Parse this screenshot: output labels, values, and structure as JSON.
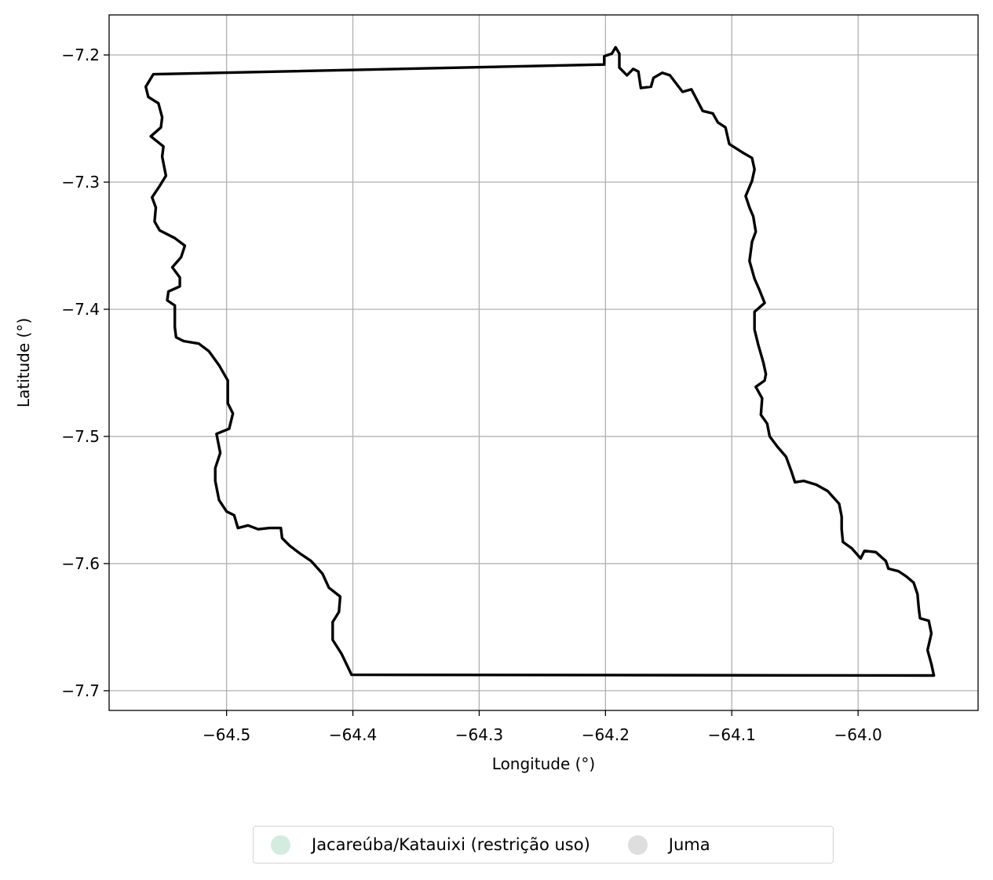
{
  "chart_data": {
    "type": "map",
    "title": "",
    "xlabel": "Longitude (°)",
    "ylabel": "Latitude (°)",
    "xlim": [
      -64.593,
      -63.905
    ],
    "ylim": [
      -7.7155,
      -7.1685
    ],
    "grid": true,
    "x_ticks": [
      {
        "value": -64.5,
        "label": "−64.5"
      },
      {
        "value": -64.4,
        "label": "−64.4"
      },
      {
        "value": -64.3,
        "label": "−64.3"
      },
      {
        "value": -64.2,
        "label": "−64.2"
      },
      {
        "value": -64.1,
        "label": "−64.1"
      },
      {
        "value": -64.0,
        "label": "−64.0"
      }
    ],
    "y_ticks": [
      {
        "value": -7.2,
        "label": "−7.2"
      },
      {
        "value": -7.3,
        "label": "−7.3"
      },
      {
        "value": -7.4,
        "label": "−7.4"
      },
      {
        "value": -7.5,
        "label": "−7.5"
      },
      {
        "value": -7.6,
        "label": "−7.6"
      },
      {
        "value": -7.7,
        "label": "−7.7"
      }
    ],
    "outline_color": "#000000",
    "boundary": [
      [
        -64.558,
        -7.2152
      ],
      [
        -64.201,
        -7.2075
      ],
      [
        -64.201,
        -7.201
      ],
      [
        -64.195,
        -7.199
      ],
      [
        -64.192,
        -7.194
      ],
      [
        -64.189,
        -7.199
      ],
      [
        -64.189,
        -7.21
      ],
      [
        -64.183,
        -7.216
      ],
      [
        -64.178,
        -7.211
      ],
      [
        -64.174,
        -7.213
      ],
      [
        -64.172,
        -7.226
      ],
      [
        -64.164,
        -7.225
      ],
      [
        -64.162,
        -7.218
      ],
      [
        -64.155,
        -7.214
      ],
      [
        -64.149,
        -7.216
      ],
      [
        -64.139,
        -7.229
      ],
      [
        -64.132,
        -7.227
      ],
      [
        -64.123,
        -7.244
      ],
      [
        -64.115,
        -7.246
      ],
      [
        -64.111,
        -7.253
      ],
      [
        -64.105,
        -7.257
      ],
      [
        -64.102,
        -7.27
      ],
      [
        -64.091,
        -7.277
      ],
      [
        -64.084,
        -7.281
      ],
      [
        -64.082,
        -7.29
      ],
      [
        -64.084,
        -7.299
      ],
      [
        -64.089,
        -7.311
      ],
      [
        -64.086,
        -7.32
      ],
      [
        -64.083,
        -7.327
      ],
      [
        -64.081,
        -7.339
      ],
      [
        -64.084,
        -7.347
      ],
      [
        -64.086,
        -7.362
      ],
      [
        -64.082,
        -7.376
      ],
      [
        -64.078,
        -7.385
      ],
      [
        -64.074,
        -7.395
      ],
      [
        -64.082,
        -7.402
      ],
      [
        -64.082,
        -7.416
      ],
      [
        -64.079,
        -7.428
      ],
      [
        -64.075,
        -7.442
      ],
      [
        -64.073,
        -7.451
      ],
      [
        -64.074,
        -7.456
      ],
      [
        -64.081,
        -7.461
      ],
      [
        -64.076,
        -7.47
      ],
      [
        -64.077,
        -7.483
      ],
      [
        -64.072,
        -7.49
      ],
      [
        -64.07,
        -7.5
      ],
      [
        -64.064,
        -7.508
      ],
      [
        -64.057,
        -7.516
      ],
      [
        -64.053,
        -7.527
      ],
      [
        -64.05,
        -7.536
      ],
      [
        -64.043,
        -7.535
      ],
      [
        -64.033,
        -7.538
      ],
      [
        -64.024,
        -7.543
      ],
      [
        -64.015,
        -7.553
      ],
      [
        -64.013,
        -7.563
      ],
      [
        -64.013,
        -7.573
      ],
      [
        -64.012,
        -7.583
      ],
      [
        -64.005,
        -7.588
      ],
      [
        -63.998,
        -7.596
      ],
      [
        -63.995,
        -7.59
      ],
      [
        -63.986,
        -7.591
      ],
      [
        -63.978,
        -7.598
      ],
      [
        -63.976,
        -7.604
      ],
      [
        -63.968,
        -7.606
      ],
      [
        -63.962,
        -7.61
      ],
      [
        -63.956,
        -7.615
      ],
      [
        -63.953,
        -7.624
      ],
      [
        -63.952,
        -7.635
      ],
      [
        -63.951,
        -7.643
      ],
      [
        -63.944,
        -7.645
      ],
      [
        -63.942,
        -7.655
      ],
      [
        -63.945,
        -7.668
      ],
      [
        -63.942,
        -7.679
      ],
      [
        -63.94,
        -7.688
      ],
      [
        -64.401,
        -7.6875
      ],
      [
        -64.409,
        -7.671
      ],
      [
        -64.416,
        -7.66
      ],
      [
        -64.416,
        -7.646
      ],
      [
        -64.411,
        -7.638
      ],
      [
        -64.41,
        -7.626
      ],
      [
        -64.419,
        -7.619
      ],
      [
        -64.424,
        -7.608
      ],
      [
        -64.433,
        -7.598
      ],
      [
        -64.442,
        -7.592
      ],
      [
        -64.45,
        -7.586
      ],
      [
        -64.456,
        -7.58
      ],
      [
        -64.457,
        -7.572
      ],
      [
        -64.466,
        -7.572
      ],
      [
        -64.475,
        -7.573
      ],
      [
        -64.483,
        -7.57
      ],
      [
        -64.491,
        -7.572
      ],
      [
        -64.494,
        -7.562
      ],
      [
        -64.5,
        -7.559
      ],
      [
        -64.506,
        -7.55
      ],
      [
        -64.509,
        -7.535
      ],
      [
        -64.509,
        -7.525
      ],
      [
        -64.505,
        -7.513
      ],
      [
        -64.508,
        -7.498
      ],
      [
        -64.498,
        -7.494
      ],
      [
        -64.495,
        -7.482
      ],
      [
        -64.499,
        -7.474
      ],
      [
        -64.499,
        -7.456
      ],
      [
        -64.506,
        -7.444
      ],
      [
        -64.514,
        -7.433
      ],
      [
        -64.522,
        -7.427
      ],
      [
        -64.534,
        -7.425
      ],
      [
        -64.54,
        -7.422
      ],
      [
        -64.541,
        -7.414
      ],
      [
        -64.541,
        -7.397
      ],
      [
        -64.547,
        -7.393
      ],
      [
        -64.546,
        -7.386
      ],
      [
        -64.537,
        -7.382
      ],
      [
        -64.537,
        -7.375
      ],
      [
        -64.543,
        -7.367
      ],
      [
        -64.536,
        -7.359
      ],
      [
        -64.533,
        -7.35
      ],
      [
        -64.541,
        -7.344
      ],
      [
        -64.553,
        -7.338
      ],
      [
        -64.557,
        -7.331
      ],
      [
        -64.556,
        -7.32
      ],
      [
        -64.559,
        -7.312
      ],
      [
        -64.553,
        -7.303
      ],
      [
        -64.548,
        -7.295
      ],
      [
        -64.551,
        -7.28
      ],
      [
        -64.55,
        -7.272
      ],
      [
        -64.56,
        -7.264
      ],
      [
        -64.552,
        -7.257
      ],
      [
        -64.551,
        -7.249
      ],
      [
        -64.554,
        -7.238
      ],
      [
        -64.562,
        -7.233
      ],
      [
        -64.564,
        -7.225
      ],
      [
        -64.558,
        -7.2152
      ]
    ],
    "legend": {
      "placement": "bottom-center",
      "entries": [
        {
          "label": "Jacareúba/Katauixi (restrição uso)",
          "color": "#d4ece0"
        },
        {
          "label": "Juma",
          "color": "#dedede"
        }
      ]
    }
  }
}
